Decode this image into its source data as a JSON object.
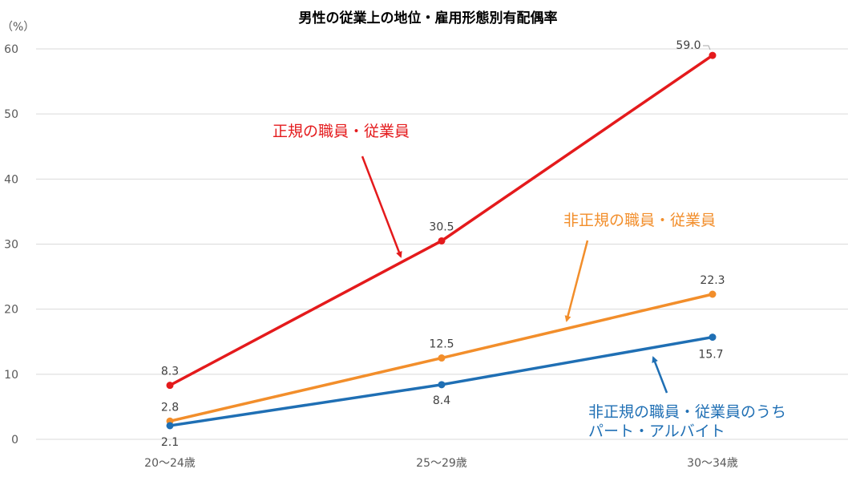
{
  "chart_data": {
    "type": "line",
    "title": "男性の従業上の地位・雇用形態別有配偶率",
    "ylabel": "（%）",
    "xlabel": "",
    "categories": [
      "20〜24歳",
      "25〜29歳",
      "30〜34歳"
    ],
    "ylim": [
      0,
      60
    ],
    "yticks": [
      0,
      10,
      20,
      30,
      40,
      50,
      60
    ],
    "grid": true,
    "series": [
      {
        "name": "正規の職員・従業員",
        "values": [
          8.3,
          30.5,
          59.0
        ],
        "labels": [
          "8.3",
          "30.5",
          "59.0"
        ],
        "color": "#E41A1C"
      },
      {
        "name": "非正規の職員・従業員",
        "values": [
          2.8,
          12.5,
          22.3
        ],
        "labels": [
          "2.8",
          "12.5",
          "22.3"
        ],
        "color": "#F28E2B"
      },
      {
        "name": "非正規の職員・従業員のうち\nパート・アルバイト",
        "name_lines": [
          "非正規の職員・従業員のうち",
          "パート・アルバイト"
        ],
        "values": [
          2.1,
          8.4,
          15.7
        ],
        "labels": [
          "2.1",
          "8.4",
          "15.7"
        ],
        "color": "#1F6FB4"
      }
    ]
  }
}
